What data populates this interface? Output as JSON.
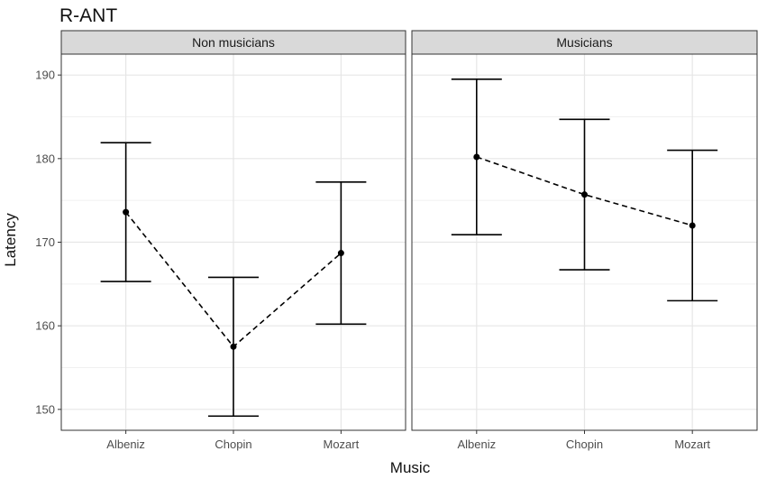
{
  "chart_data": {
    "type": "scatter",
    "title": "R-ANT",
    "xlabel": "Music",
    "ylabel": "Latency",
    "ylim": [
      147.5,
      192.5
    ],
    "yticks": [
      150,
      160,
      170,
      180,
      190
    ],
    "categories": [
      "Albeniz",
      "Chopin",
      "Mozart"
    ],
    "grid": true,
    "facets": [
      {
        "name": "Non musicians",
        "points": [
          {
            "x": "Albeniz",
            "y": 173.6,
            "ymin": 165.3,
            "ymax": 181.9
          },
          {
            "x": "Chopin",
            "y": 157.5,
            "ymin": 149.2,
            "ymax": 165.8
          },
          {
            "x": "Mozart",
            "y": 168.7,
            "ymin": 160.2,
            "ymax": 177.2
          }
        ]
      },
      {
        "name": "Musicians",
        "points": [
          {
            "x": "Albeniz",
            "y": 180.2,
            "ymin": 170.9,
            "ymax": 189.5
          },
          {
            "x": "Chopin",
            "y": 175.7,
            "ymin": 166.7,
            "ymax": 184.7
          },
          {
            "x": "Mozart",
            "y": 172.0,
            "ymin": 163.0,
            "ymax": 181.0
          }
        ]
      }
    ]
  }
}
